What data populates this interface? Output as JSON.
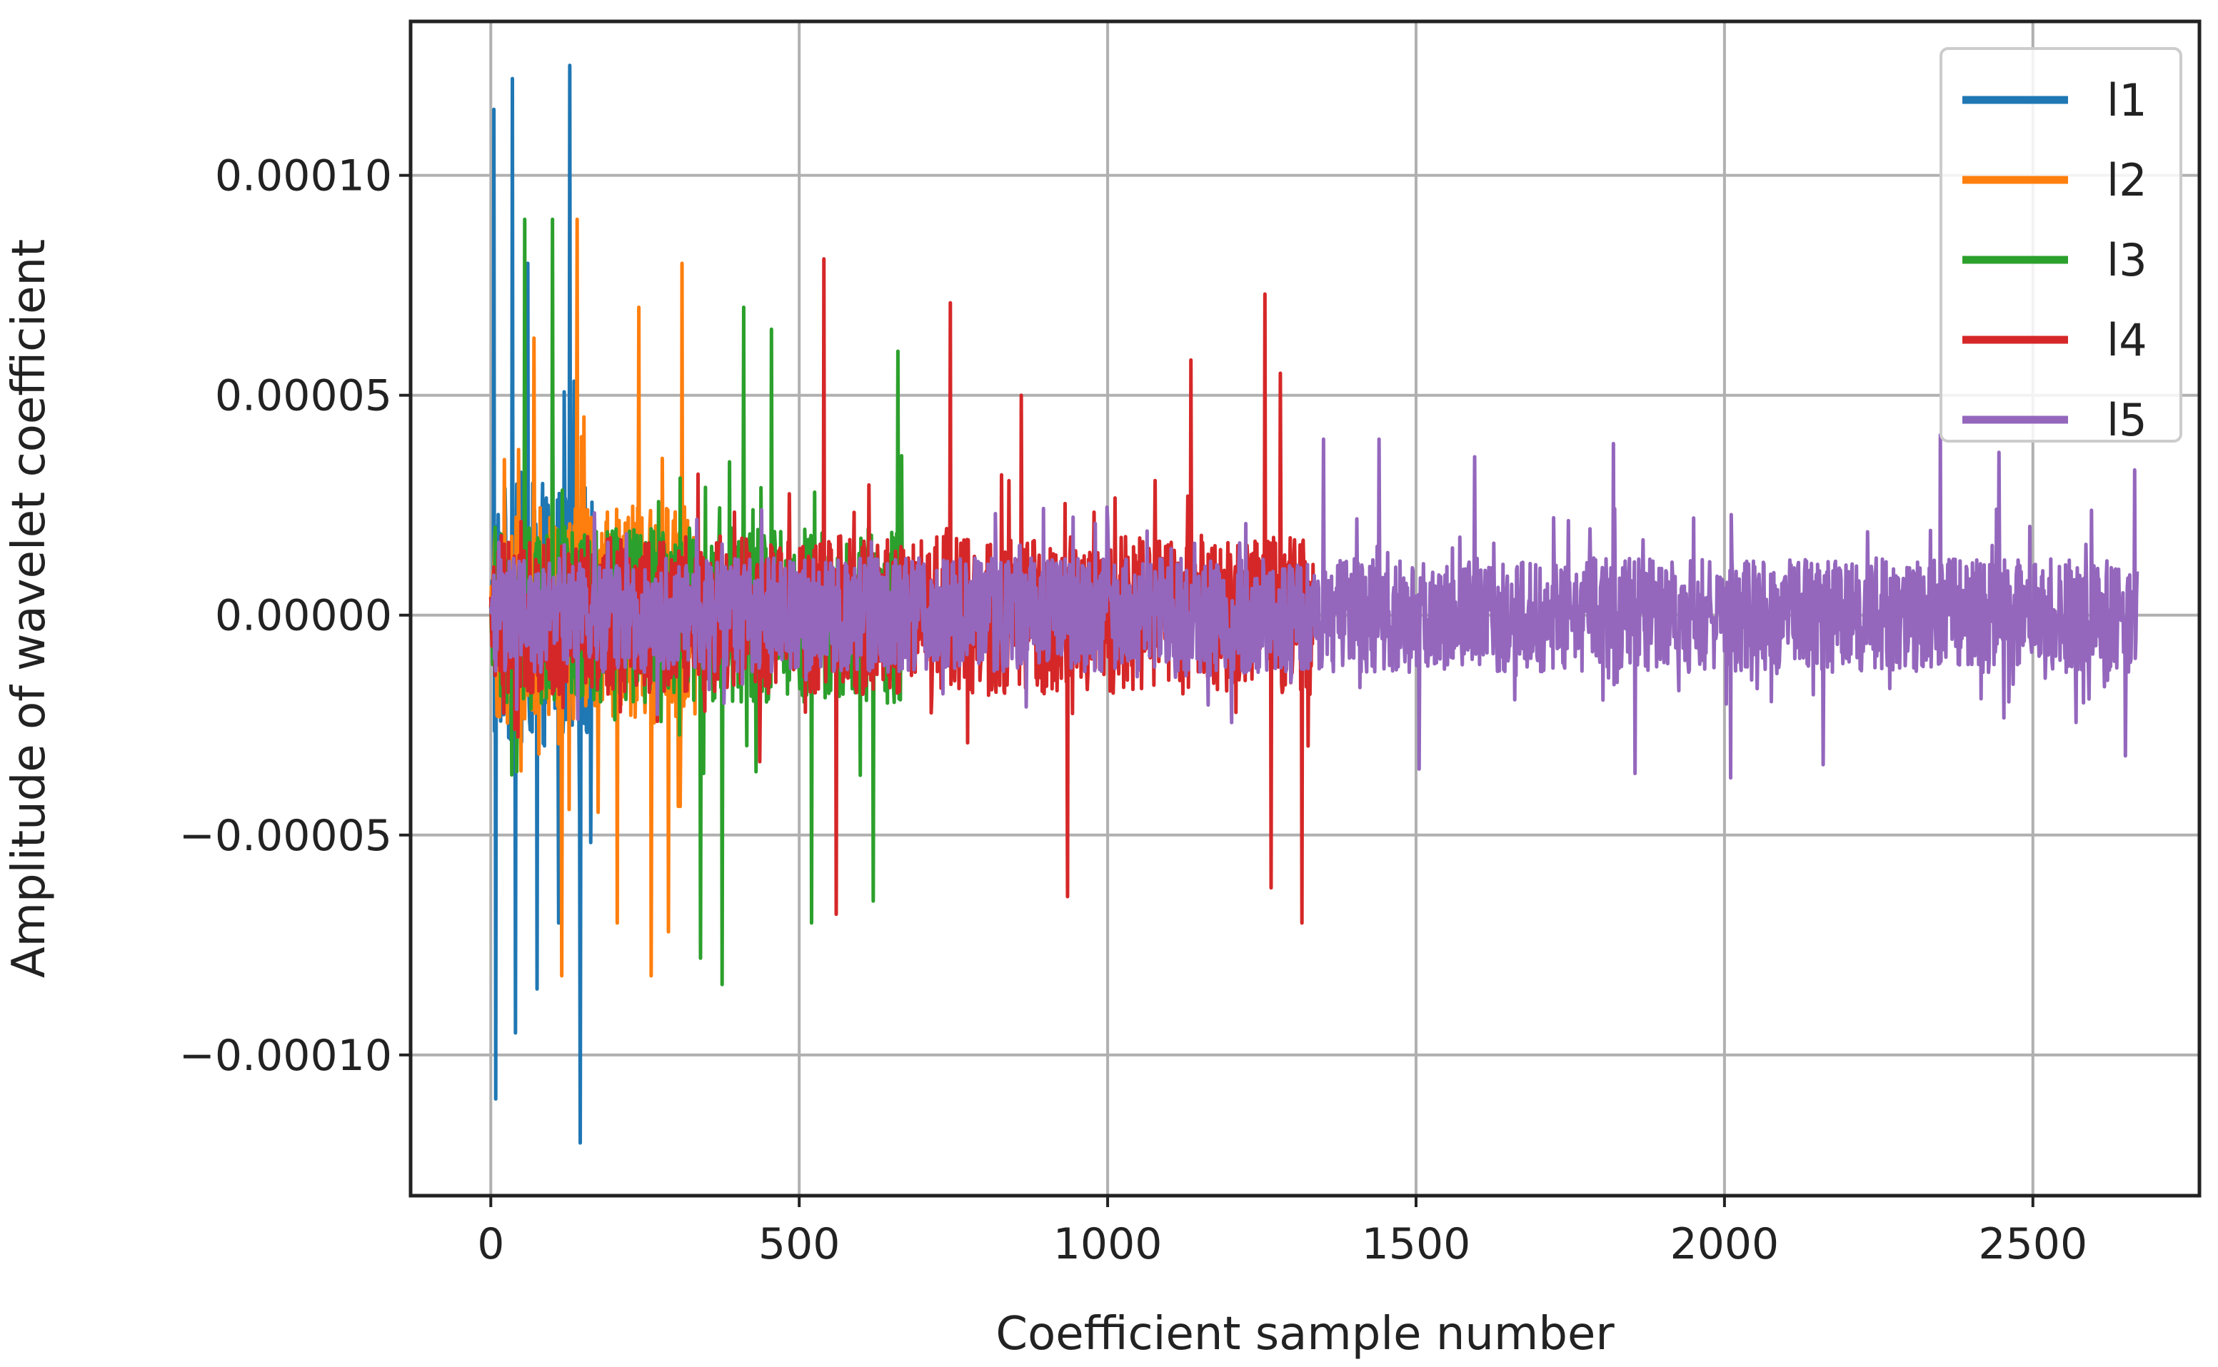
{
  "chart_data": {
    "type": "line",
    "title": "",
    "xlabel": "Coefficient sample number",
    "ylabel": "Amplitude of wavelet coefficient",
    "xlim": [
      -130,
      2770
    ],
    "ylim": [
      -0.000132,
      0.000135
    ],
    "xticks": [
      0,
      500,
      1000,
      1500,
      2000,
      2500
    ],
    "xtick_labels": [
      "0",
      "500",
      "1000",
      "1500",
      "2000",
      "2500"
    ],
    "yticks": [
      0.0001,
      5e-05,
      0.0,
      -5e-05,
      -0.0001
    ],
    "ytick_labels": [
      "0.00010",
      "0.00005",
      "0.00000",
      "−0.00005",
      "−0.00010"
    ],
    "grid": true,
    "legend_position": "top-right",
    "series": [
      {
        "name": "l1",
        "color": "#1f77b4",
        "n": 167,
        "amplitude": 3e-05,
        "peaks": [
          [
            5,
            0.000115
          ],
          [
            8,
            -0.00011
          ],
          [
            35,
            0.000122
          ],
          [
            40,
            -9.5e-05
          ],
          [
            60,
            8e-05
          ],
          [
            75,
            -8.5e-05
          ],
          [
            128,
            0.000125
          ],
          [
            145,
            -0.00012
          ],
          [
            100,
            6e-05
          ],
          [
            110,
            -7e-05
          ]
        ]
      },
      {
        "name": "l2",
        "color": "#ff7f0e",
        "n": 334,
        "amplitude": 2.5e-05,
        "peaks": [
          [
            70,
            6.3e-05
          ],
          [
            140,
            9e-05
          ],
          [
            205,
            -7e-05
          ],
          [
            240,
            7e-05
          ],
          [
            260,
            -8.2e-05
          ],
          [
            310,
            8e-05
          ],
          [
            288,
            -7.2e-05
          ],
          [
            115,
            -8.2e-05
          ]
        ]
      },
      {
        "name": "l3",
        "color": "#2ca02c",
        "n": 668,
        "amplitude": 2e-05,
        "peaks": [
          [
            55,
            9e-05
          ],
          [
            100,
            9e-05
          ],
          [
            340,
            -7.8e-05
          ],
          [
            375,
            -8.4e-05
          ],
          [
            410,
            7e-05
          ],
          [
            455,
            6.5e-05
          ],
          [
            520,
            -7e-05
          ],
          [
            620,
            -6.5e-05
          ],
          [
            660,
            6e-05
          ]
        ]
      },
      {
        "name": "l4",
        "color": "#d62728",
        "n": 1335,
        "amplitude": 1.8e-05,
        "peaks": [
          [
            540,
            8.1e-05
          ],
          [
            560,
            -6.8e-05
          ],
          [
            745,
            7.1e-05
          ],
          [
            935,
            -6.4e-05
          ],
          [
            1255,
            7.3e-05
          ],
          [
            1265,
            -6.2e-05
          ],
          [
            1315,
            -7e-05
          ],
          [
            1280,
            5.5e-05
          ],
          [
            860,
            5e-05
          ],
          [
            1135,
            5.8e-05
          ]
        ]
      },
      {
        "name": "l5",
        "color": "#9467bd",
        "n": 2670,
        "amplitude": 1.3e-05,
        "peaks": [
          [
            1350,
            4e-05
          ],
          [
            1440,
            4e-05
          ],
          [
            1505,
            -3.5e-05
          ],
          [
            1595,
            3.6e-05
          ],
          [
            1820,
            3.9e-05
          ],
          [
            1855,
            -3.6e-05
          ],
          [
            2010,
            -3.7e-05
          ],
          [
            2160,
            -3.4e-05
          ],
          [
            2350,
            4.1e-05
          ],
          [
            2445,
            3.7e-05
          ],
          [
            2650,
            -3.2e-05
          ],
          [
            2665,
            3.3e-05
          ]
        ]
      }
    ]
  }
}
